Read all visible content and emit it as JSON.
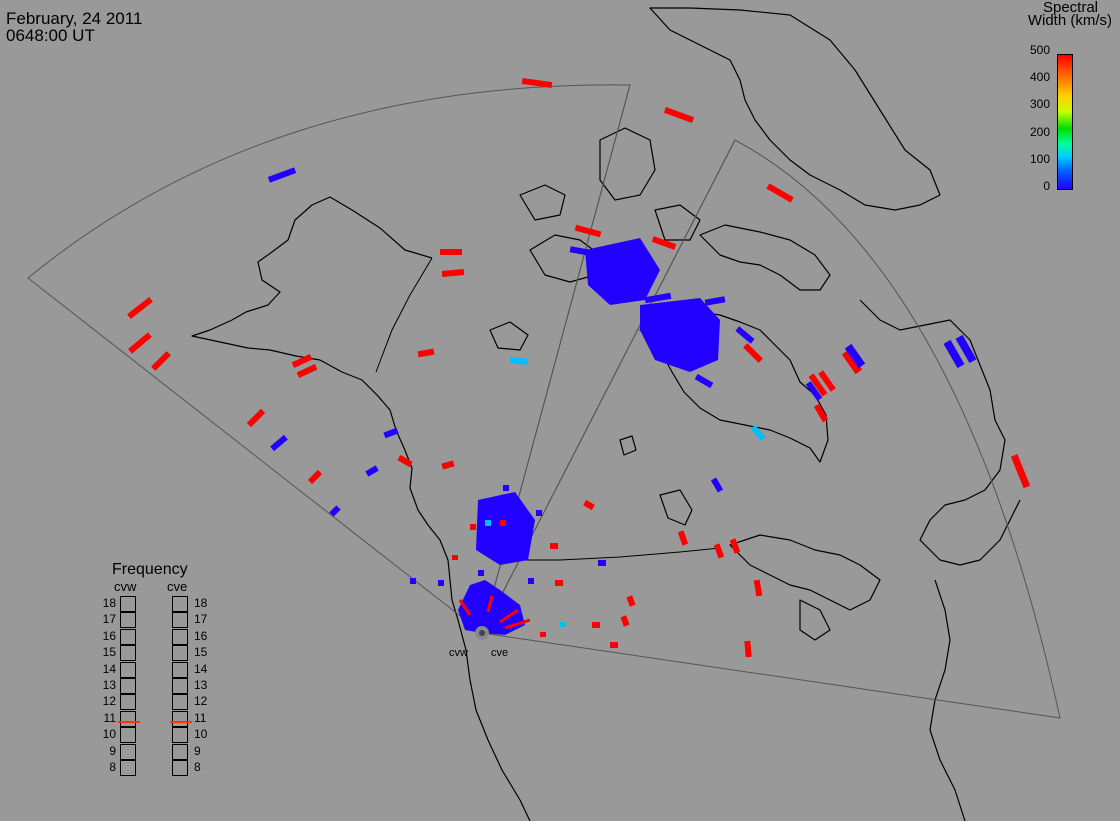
{
  "header": {
    "date": "February, 24 2011",
    "time": "0648:00 UT"
  },
  "colorbar": {
    "title_line1": "Spectral",
    "title_line2": "Width (km/s)",
    "ticks": [
      "500",
      "400",
      "300",
      "200",
      "100",
      "0"
    ]
  },
  "frequency_panel": {
    "title": "Frequency",
    "left_radar": "cvw",
    "right_radar": "cve",
    "levels": [
      "18",
      "17",
      "16",
      "15",
      "14",
      "13",
      "12",
      "11",
      "10",
      "9",
      "8"
    ],
    "cvw_frequency_mhz": 10.8,
    "cve_frequency_mhz": 10.8
  },
  "radar_sites": {
    "cvw": "cvw",
    "cve": "cve"
  },
  "colors": {
    "background": "#999999",
    "coastline": "#000000",
    "fov": "#555555",
    "scatter_high": "#ff0000",
    "scatter_low": "#0000ff",
    "scatter_mid": "#00bfff",
    "frequency_marker": "#ff3300"
  }
}
